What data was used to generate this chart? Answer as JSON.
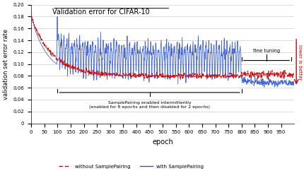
{
  "title": "Validation error for CIFAR-10",
  "xlabel": "epoch",
  "ylabel": "validation set error rate",
  "xlim": [
    0,
    1000
  ],
  "ylim": [
    0,
    0.2
  ],
  "yticks": [
    0,
    0.02,
    0.04,
    0.06,
    0.08,
    0.1,
    0.12,
    0.14,
    0.16,
    0.18,
    0.2
  ],
  "xticks": [
    0,
    50,
    100,
    150,
    200,
    250,
    300,
    350,
    400,
    450,
    500,
    550,
    600,
    650,
    700,
    750,
    800,
    850,
    900,
    950
  ],
  "red_line_color": "#cc0000",
  "blue_line_color": "#3355cc",
  "annotation_color": "#cc0000",
  "background_color": "#ffffff",
  "grid_color": "#cccccc",
  "figsize": [
    4.31,
    2.59
  ],
  "dpi": 100
}
